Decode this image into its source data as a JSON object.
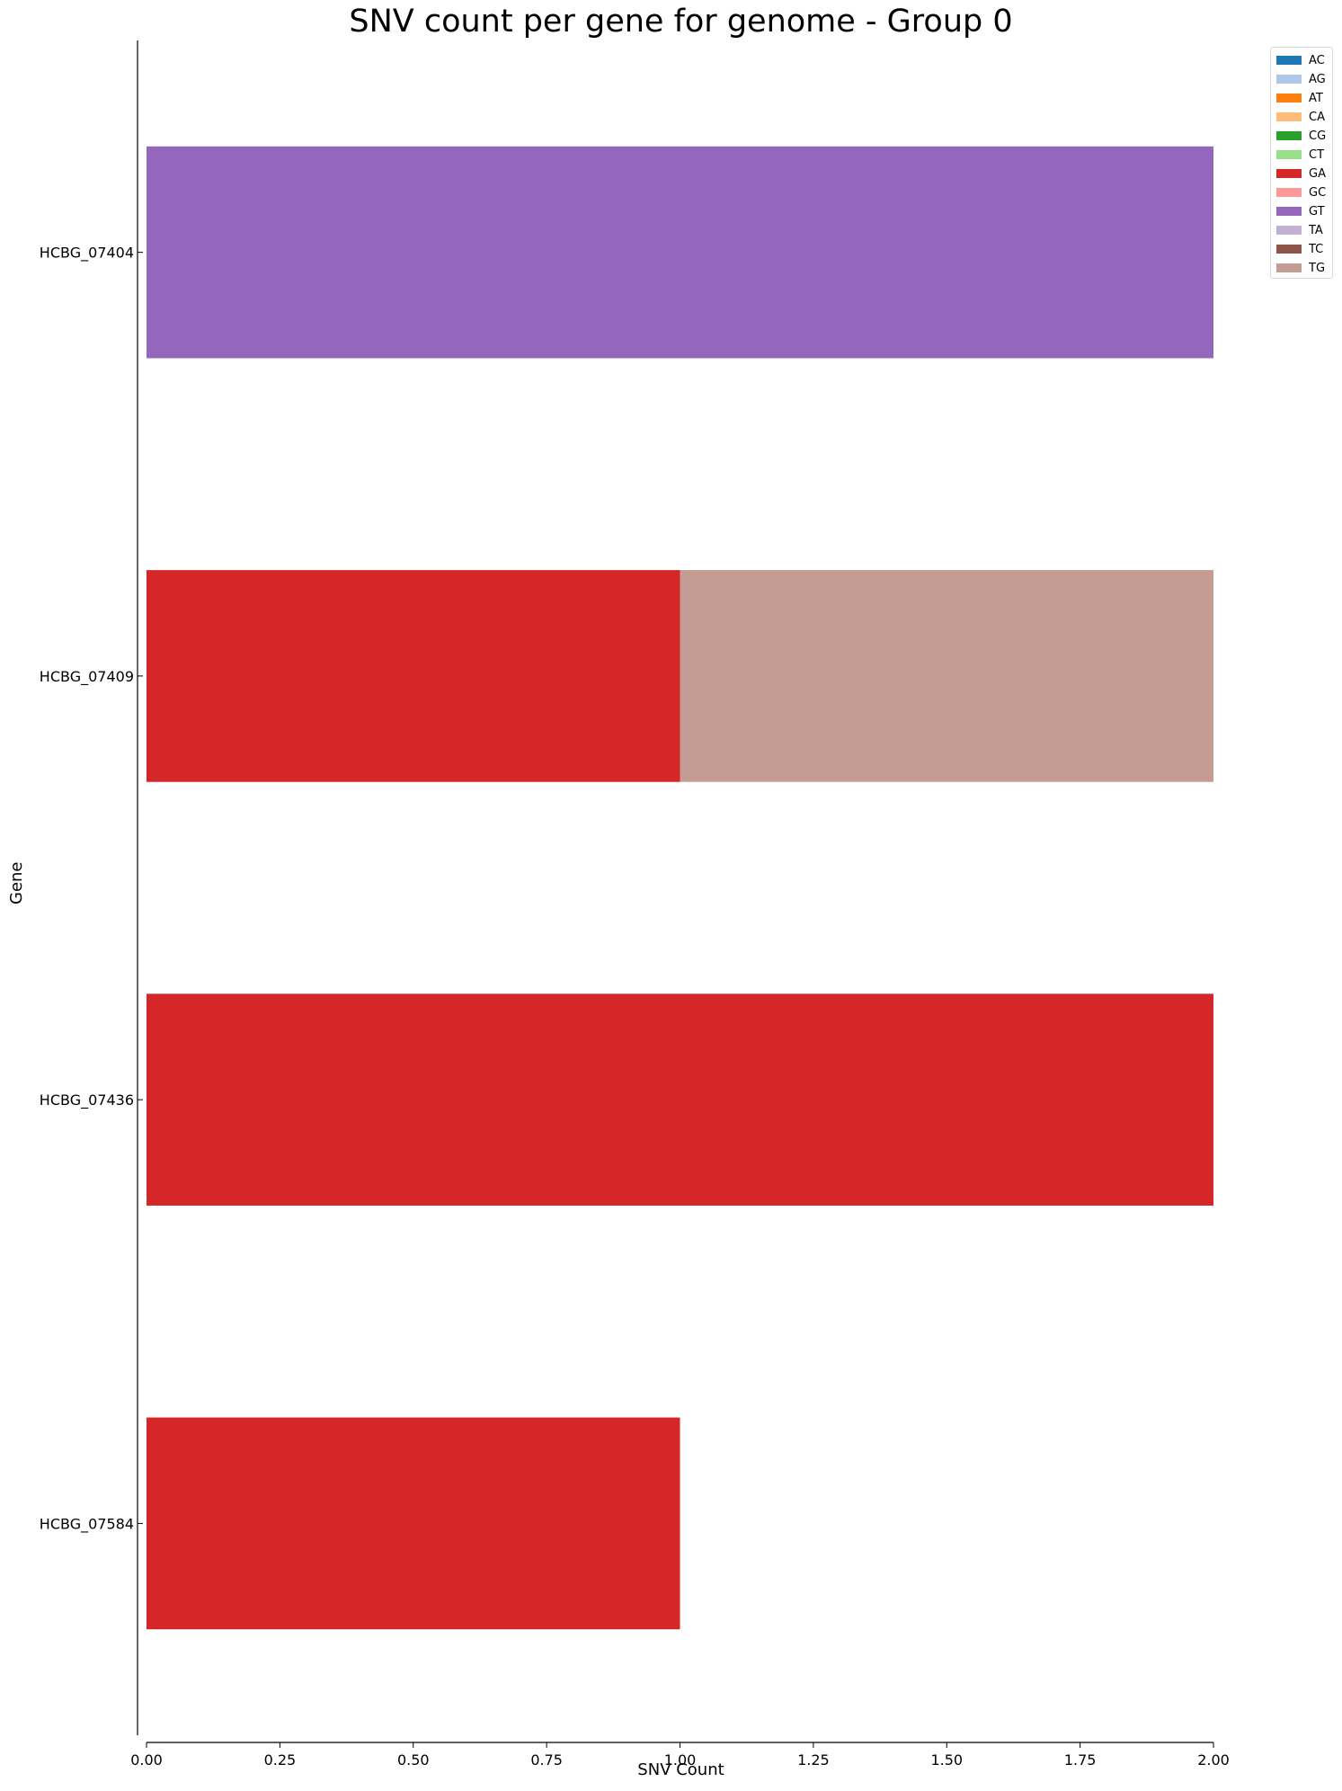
{
  "chart_data": {
    "type": "bar",
    "orientation": "horizontal",
    "stacked": true,
    "title": "SNV count per gene for genome - Group 0",
    "xlabel": "SNV Count",
    "ylabel": "Gene",
    "xlim": [
      0,
      2
    ],
    "xticks": [
      "0.00",
      "0.25",
      "0.50",
      "0.75",
      "1.00",
      "1.25",
      "1.50",
      "1.75",
      "2.00"
    ],
    "categories": [
      "HCBG_07404",
      "HCBG_07409",
      "HCBG_07436",
      "HCBG_07584"
    ],
    "series": [
      {
        "name": "AC",
        "color": "#1f77b4",
        "values": [
          0,
          0,
          0,
          0
        ]
      },
      {
        "name": "AG",
        "color": "#aec7e8",
        "values": [
          0,
          0,
          0,
          0
        ]
      },
      {
        "name": "AT",
        "color": "#ff7f0e",
        "values": [
          0,
          0,
          0,
          0
        ]
      },
      {
        "name": "CA",
        "color": "#ffbb78",
        "values": [
          0,
          0,
          0,
          0
        ]
      },
      {
        "name": "CG",
        "color": "#2ca02c",
        "values": [
          0,
          0,
          0,
          0
        ]
      },
      {
        "name": "CT",
        "color": "#98df8a",
        "values": [
          0,
          0,
          0,
          0
        ]
      },
      {
        "name": "GA",
        "color": "#d62728",
        "values": [
          0,
          1,
          2,
          1
        ]
      },
      {
        "name": "GC",
        "color": "#ff9896",
        "values": [
          0,
          0,
          0,
          0
        ]
      },
      {
        "name": "GT",
        "color": "#9467bd",
        "values": [
          2,
          0,
          0,
          0
        ]
      },
      {
        "name": "TA",
        "color": "#c5b0d5",
        "values": [
          0,
          0,
          0,
          0
        ]
      },
      {
        "name": "TC",
        "color": "#8c564b",
        "values": [
          0,
          0,
          0,
          0
        ]
      },
      {
        "name": "TG",
        "color": "#c49c94",
        "values": [
          0,
          1,
          0,
          0
        ]
      }
    ],
    "legend_position": "top-right, outside plot",
    "grid": false
  }
}
